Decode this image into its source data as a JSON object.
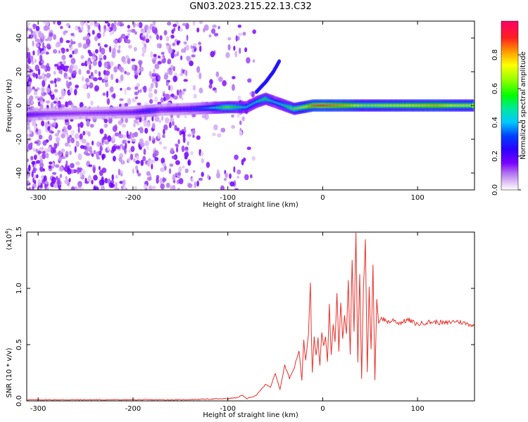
{
  "title": "GN03.2023.215.22.13.C32",
  "chart_data": [
    {
      "type": "heatmap",
      "xlabel": "Height of straight line (km)",
      "ylabel": "Frequency (Hz)",
      "xlim": [
        -312,
        160
      ],
      "ylim": [
        -50,
        50
      ],
      "xticks": [
        -300,
        -200,
        -100,
        0,
        100
      ],
      "yticks": [
        -40,
        -20,
        0,
        20,
        40
      ],
      "colorbar": {
        "label": "Normalized spectral amplitude",
        "range": [
          0,
          1
        ],
        "ticks": [
          0.0,
          0.2,
          0.4,
          0.6,
          0.8
        ],
        "colors": [
          "#ffffff",
          "#e3c8f5",
          "#b070f0",
          "#7a00ff",
          "#2a00ff",
          "#0040ff",
          "#00c8ff",
          "#00e8a0",
          "#00ff00",
          "#a0ff00",
          "#ffff00",
          "#ff9900",
          "#ff2020",
          "#ff0066"
        ]
      },
      "trace": [
        {
          "x": -310,
          "f": -5.5,
          "amp": 0.22
        },
        {
          "x": -290,
          "f": -5,
          "amp": 0.18
        },
        {
          "x": -250,
          "f": -4.5,
          "amp": 0.16
        },
        {
          "x": -200,
          "f": -4,
          "amp": 0.2
        },
        {
          "x": -180,
          "f": -3,
          "amp": 0.28
        },
        {
          "x": -170,
          "f": -2.5,
          "amp": 0.2
        },
        {
          "x": -140,
          "f": -2,
          "amp": 0.26
        },
        {
          "x": -120,
          "f": -1.5,
          "amp": 0.36
        },
        {
          "x": -100,
          "f": -1,
          "amp": 0.62
        },
        {
          "x": -80,
          "f": -1,
          "amp": 0.44
        },
        {
          "x": -70,
          "f": 2,
          "amp": 0.46
        },
        {
          "x": -60,
          "f": 4,
          "amp": 0.55
        },
        {
          "x": -50,
          "f": 2,
          "amp": 0.42
        },
        {
          "x": -40,
          "f": 0,
          "amp": 0.5
        },
        {
          "x": -30,
          "f": -2,
          "amp": 0.62
        },
        {
          "x": -20,
          "f": -1,
          "amp": 0.7
        },
        {
          "x": -10,
          "f": 0,
          "amp": 0.86
        },
        {
          "x": 0,
          "f": 0,
          "amp": 0.9
        },
        {
          "x": 10,
          "f": 0,
          "amp": 0.86
        },
        {
          "x": 30,
          "f": 0,
          "amp": 0.78
        },
        {
          "x": 45,
          "f": 0,
          "amp": 0.66
        },
        {
          "x": 60,
          "f": 0,
          "amp": 0.7
        },
        {
          "x": 80,
          "f": 0,
          "amp": 0.72
        },
        {
          "x": 100,
          "f": 0,
          "amp": 0.76
        },
        {
          "x": 120,
          "f": 0,
          "amp": 0.8
        },
        {
          "x": 140,
          "f": 0,
          "amp": 0.72
        },
        {
          "x": 160,
          "f": 0,
          "amp": 0.7
        }
      ],
      "branch": [
        {
          "x": -70,
          "f": 8
        },
        {
          "x": -60,
          "f": 14
        },
        {
          "x": -52,
          "f": 20
        },
        {
          "x": -45,
          "f": 27
        }
      ]
    },
    {
      "type": "line",
      "xlabel": "Height of straight line (km)",
      "ylabel": "SNR (10 * v/v)",
      "y_multiplier": "(x10",
      "y_multiplier_exp": "4",
      "xlim": [
        -312,
        160
      ],
      "ylim": [
        0,
        1.5
      ],
      "xticks": [
        -300,
        -200,
        -100,
        0,
        100
      ],
      "yticks": [
        0.0,
        0.5,
        1.0,
        1.5
      ],
      "color": "#e8302a",
      "series": [
        {
          "x": [
            -312,
            -300,
            -250,
            -200,
            -150,
            -100,
            -90,
            -85,
            -80,
            -70,
            -60,
            -55,
            -50,
            -45,
            -40,
            -35,
            -30,
            -25,
            -22,
            -20,
            -18,
            -15,
            -13,
            -11,
            -9,
            -7,
            -5,
            -3,
            -1,
            1,
            3,
            5,
            7,
            9,
            11,
            13,
            15,
            17,
            19,
            21,
            23,
            25,
            27,
            29,
            31,
            33,
            35,
            37,
            39,
            41,
            43,
            45,
            47,
            49,
            51,
            53,
            55,
            57,
            59,
            61,
            65,
            70,
            75,
            80,
            90,
            100,
            110,
            120,
            130,
            140,
            150,
            160
          ],
          "y": [
            0.01,
            0.01,
            0.01,
            0.01,
            0.01,
            0.02,
            0.03,
            0.05,
            0.02,
            0.05,
            0.15,
            0.12,
            0.25,
            0.1,
            0.32,
            0.2,
            0.3,
            0.45,
            0.18,
            0.55,
            0.35,
            0.6,
            1.02,
            0.25,
            0.58,
            0.4,
            0.55,
            0.32,
            0.62,
            0.5,
            0.58,
            0.35,
            0.85,
            0.4,
            0.7,
            0.52,
            0.95,
            0.45,
            0.88,
            0.55,
            0.75,
            0.6,
            1.05,
            0.42,
            1.25,
            0.62,
            1.5,
            0.35,
            1.15,
            0.2,
            1.05,
            1.4,
            0.25,
            1.0,
            0.45,
            1.2,
            0.18,
            0.9,
            0.7,
            0.74,
            0.72,
            0.7,
            0.72,
            0.69,
            0.72,
            0.68,
            0.7,
            0.7,
            0.69,
            0.71,
            0.69,
            0.67
          ]
        }
      ]
    }
  ]
}
